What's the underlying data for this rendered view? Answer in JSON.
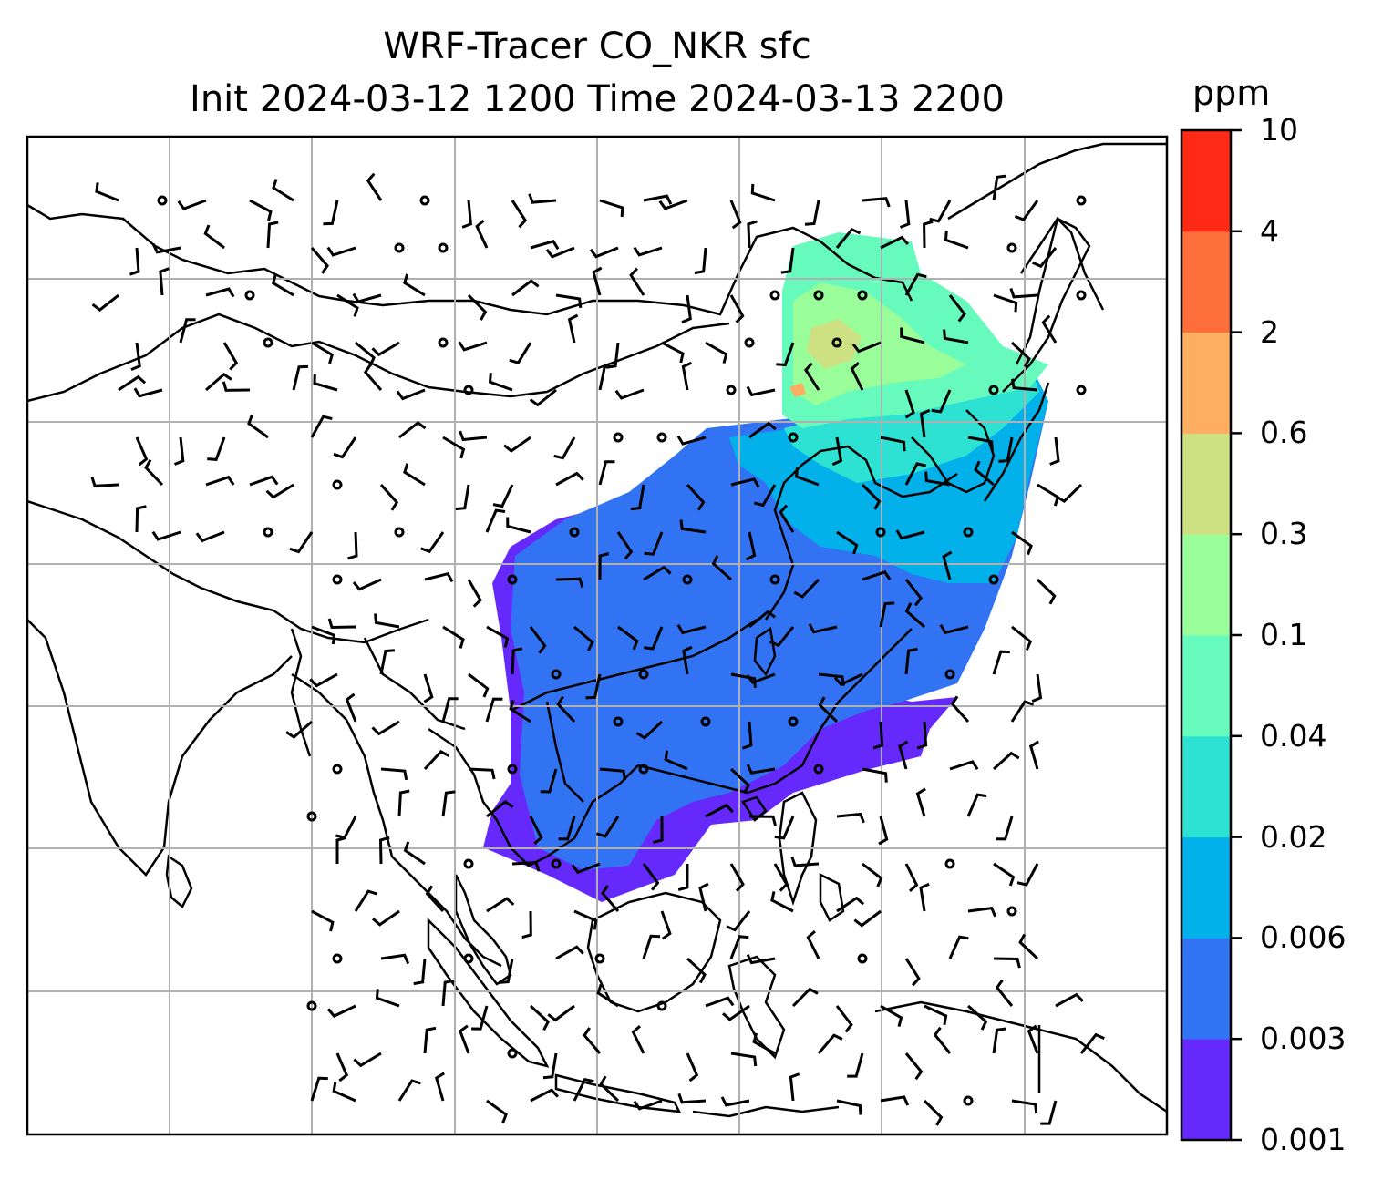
{
  "title": {
    "line1": "WRF-Tracer CO_NKR sfc",
    "line2": "Init 2024-03-12 1200 Time 2024-03-13 2200"
  },
  "colorbar": {
    "unit": "ppm",
    "levels": [
      "0.001",
      "0.003",
      "0.006",
      "0.02",
      "0.04",
      "0.1",
      "0.3",
      "0.6",
      "2",
      "4",
      "10"
    ],
    "colors": [
      "#6629fb",
      "#3273f3",
      "#03b1ea",
      "#2ee2d3",
      "#66fbbd",
      "#99fd99",
      "#cde182",
      "#feae61",
      "#fe6e3b",
      "#fe2a16"
    ]
  },
  "map": {
    "variable": "CO_NKR surface tracer concentration",
    "overlays": [
      "coastlines",
      "country-borders",
      "lat-lon-gridlines",
      "wind-barbs"
    ]
  }
}
